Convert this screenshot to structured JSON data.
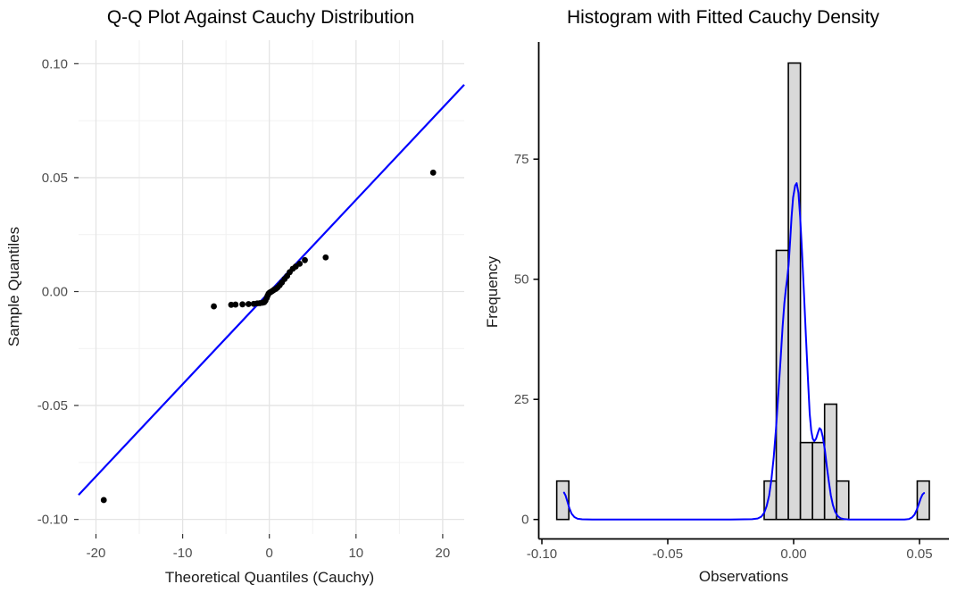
{
  "chart_data": [
    {
      "type": "scatter",
      "title": "Q-Q Plot Against Cauchy Distribution",
      "xlabel": "Theoretical Quantiles (Cauchy)",
      "ylabel": "Sample Quantiles",
      "xlim": [
        -22,
        22.5
      ],
      "ylim": [
        -0.107,
        0.111
      ],
      "grid": "major and minor, light gray, white panel background",
      "x_tick_values": [
        -20,
        -10,
        0,
        10,
        20
      ],
      "x_tick_labels": [
        "-20",
        "-10",
        "0",
        "10",
        "20"
      ],
      "y_tick_values": [
        0.1,
        0.05,
        0.0,
        -0.05,
        -0.1
      ],
      "y_tick_labels": [
        "0.10",
        "0.05",
        "0.00",
        "-0.05",
        "-0.10"
      ],
      "point_color": "#000000",
      "fit_line": {
        "slope": 0.004046,
        "intercept": -0.0002,
        "color": "#0000FF"
      },
      "points": [
        [
          -19.1,
          -0.0915
        ],
        [
          -6.4,
          -0.0065
        ],
        [
          -4.4,
          -0.0058
        ],
        [
          -3.9,
          -0.0057
        ],
        [
          -3.1,
          -0.0056
        ],
        [
          -2.4,
          -0.0055
        ],
        [
          -1.8,
          -0.0054
        ],
        [
          -1.4,
          -0.0052
        ],
        [
          -1.1,
          -0.0051
        ],
        [
          -0.8,
          -0.0049
        ],
        [
          -0.6,
          -0.0047
        ],
        [
          -0.45,
          -0.004
        ],
        [
          -0.3,
          -0.0028
        ],
        [
          -0.2,
          -0.0018
        ],
        [
          -0.1,
          -0.001
        ],
        [
          0.0,
          -0.0006
        ],
        [
          0.1,
          -0.0003
        ],
        [
          0.25,
          0.0
        ],
        [
          0.4,
          0.0004
        ],
        [
          0.55,
          0.0008
        ],
        [
          0.75,
          0.0012
        ],
        [
          0.95,
          0.0018
        ],
        [
          1.2,
          0.0028
        ],
        [
          1.45,
          0.004
        ],
        [
          1.75,
          0.0055
        ],
        [
          2.05,
          0.0068
        ],
        [
          2.35,
          0.0085
        ],
        [
          2.7,
          0.01
        ],
        [
          3.05,
          0.011
        ],
        [
          3.5,
          0.0122
        ],
        [
          4.1,
          0.0138
        ],
        [
          6.5,
          0.015
        ],
        [
          18.9,
          0.0522
        ]
      ]
    },
    {
      "type": "bar",
      "title": "Histogram with Fitted Cauchy Density",
      "xlabel": "Observations",
      "ylabel": "Frequency",
      "xlim": [
        -0.101,
        0.062
      ],
      "ylim": [
        0,
        100
      ],
      "grid": "none, classic black L axes",
      "x_tick_values": [
        -0.1,
        -0.05,
        0.0,
        0.05
      ],
      "x_tick_labels": [
        "-0.10",
        "-0.05",
        "0.00",
        "0.05"
      ],
      "y_tick_values": [
        0,
        25,
        50,
        75
      ],
      "y_tick_labels": [
        "0",
        "25",
        "50",
        "75"
      ],
      "bar_fill": "#D9D9D9",
      "bar_stroke": "#000000",
      "density_color": "#0000FF",
      "bars": [
        {
          "x0": -0.0941,
          "x1": -0.0893,
          "count": 8
        },
        {
          "x0": -0.0117,
          "x1": -0.0069,
          "count": 8
        },
        {
          "x0": -0.0069,
          "x1": -0.0021,
          "count": 56
        },
        {
          "x0": -0.0021,
          "x1": 0.0027,
          "count": 95
        },
        {
          "x0": 0.0027,
          "x1": 0.0075,
          "count": 16
        },
        {
          "x0": 0.0075,
          "x1": 0.0123,
          "count": 16
        },
        {
          "x0": 0.0123,
          "x1": 0.0171,
          "count": 24
        },
        {
          "x0": 0.0171,
          "x1": 0.0219,
          "count": 8
        },
        {
          "x0": 0.0491,
          "x1": 0.0539,
          "count": 8
        }
      ],
      "density": [
        [
          -0.0912,
          5.6
        ],
        [
          -0.0906,
          5.0
        ],
        [
          -0.0899,
          3.8
        ],
        [
          -0.0891,
          2.4
        ],
        [
          -0.0882,
          1.2
        ],
        [
          -0.0871,
          0.5
        ],
        [
          -0.0858,
          0.15
        ],
        [
          -0.084,
          0.03
        ],
        [
          -0.08,
          0
        ],
        [
          -0.05,
          0
        ],
        [
          -0.025,
          0
        ],
        [
          -0.0165,
          0.05
        ],
        [
          -0.0143,
          0.2
        ],
        [
          -0.0128,
          0.6
        ],
        [
          -0.0117,
          1.4
        ],
        [
          -0.0107,
          2.8
        ],
        [
          -0.0097,
          5.0
        ],
        [
          -0.0088,
          8.5
        ],
        [
          -0.0079,
          13
        ],
        [
          -0.007,
          19
        ],
        [
          -0.0061,
          26
        ],
        [
          -0.0052,
          33
        ],
        [
          -0.0044,
          40
        ],
        [
          -0.0037,
          45
        ],
        [
          -0.0031,
          48
        ],
        [
          -0.0026,
          50
        ],
        [
          -0.002,
          53
        ],
        [
          -0.0014,
          58
        ],
        [
          -0.0008,
          63
        ],
        [
          -0.0002,
          67
        ],
        [
          0.0006,
          69.5
        ],
        [
          0.0012,
          70
        ],
        [
          0.0019,
          68
        ],
        [
          0.0026,
          63
        ],
        [
          0.0033,
          56
        ],
        [
          0.0041,
          47
        ],
        [
          0.0049,
          38
        ],
        [
          0.0057,
          29
        ],
        [
          0.0064,
          22
        ],
        [
          0.007,
          18.5
        ],
        [
          0.0076,
          16.8
        ],
        [
          0.0082,
          16.3
        ],
        [
          0.0089,
          16.8
        ],
        [
          0.0096,
          18
        ],
        [
          0.0103,
          19
        ],
        [
          0.0109,
          18.7
        ],
        [
          0.0116,
          17.2
        ],
        [
          0.0124,
          14.5
        ],
        [
          0.0132,
          11
        ],
        [
          0.014,
          7.8
        ],
        [
          0.0148,
          5.0
        ],
        [
          0.0156,
          3.0
        ],
        [
          0.0165,
          1.6
        ],
        [
          0.0175,
          0.7
        ],
        [
          0.0187,
          0.25
        ],
        [
          0.02,
          0.07
        ],
        [
          0.022,
          0
        ],
        [
          0.03,
          0
        ],
        [
          0.044,
          0
        ],
        [
          0.0458,
          0.1
        ],
        [
          0.047,
          0.4
        ],
        [
          0.048,
          1.0
        ],
        [
          0.0489,
          2.0
        ],
        [
          0.0497,
          3.2
        ],
        [
          0.0505,
          4.4
        ],
        [
          0.0512,
          5.2
        ],
        [
          0.0518,
          5.5
        ]
      ]
    }
  ]
}
